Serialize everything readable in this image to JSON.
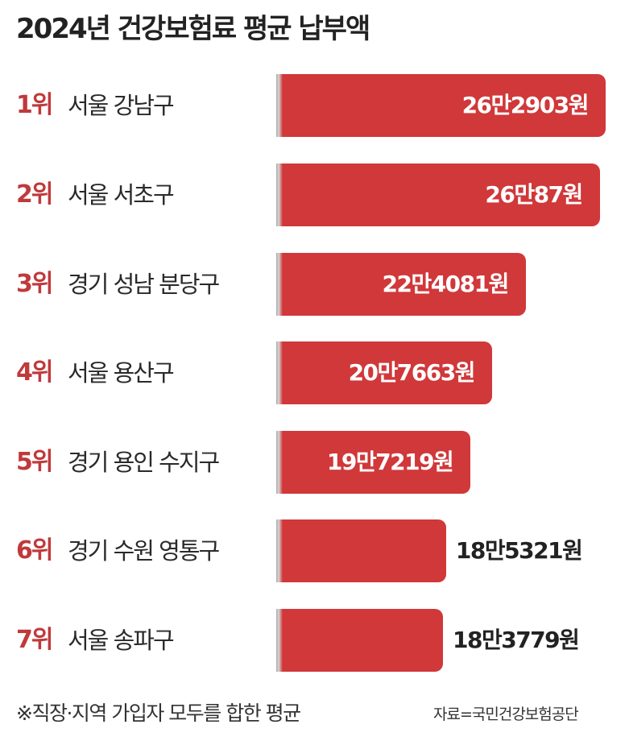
{
  "chart_data": {
    "type": "bar",
    "orientation": "horizontal",
    "title": "2024년 건강보험료 평균 납부액",
    "ranks": [
      "1위",
      "2위",
      "3위",
      "4위",
      "5위",
      "6위",
      "7위"
    ],
    "categories": [
      "서울 강남구",
      "서울 서초구",
      "경기 성남 분당구",
      "서울 용산구",
      "경기 용인 수지구",
      "경기 수원 영통구",
      "서울 송파구"
    ],
    "values": [
      262903,
      260087,
      224081,
      207663,
      197219,
      185321,
      183779
    ],
    "value_labels": [
      "26만2903원",
      "26만87원",
      "22만4081원",
      "20만7663원",
      "19만7219원",
      "18만5321원",
      "18만3779원"
    ],
    "unit": "원",
    "bar_color": "#d0383a",
    "rank_color": "#c0393b",
    "grid": false,
    "note": "※직장·지역 가입자 모두를 합한 평균",
    "source": "자료=국민건강보험공단"
  }
}
